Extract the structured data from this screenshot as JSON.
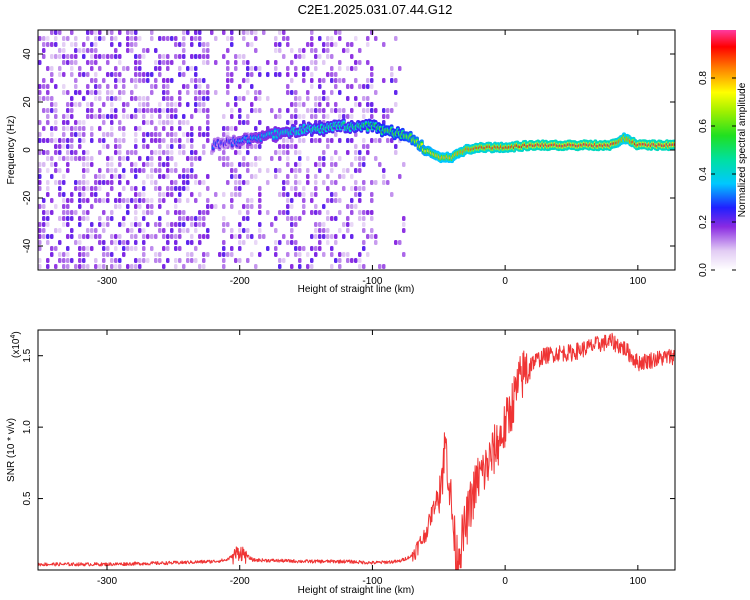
{
  "title": "C2E1.2025.031.07.44.G12",
  "chart_data": [
    {
      "type": "heatmap",
      "xlabel": "Height of straight line (km)",
      "ylabel": "Frequency (Hz)",
      "xlim": [
        -352,
        128
      ],
      "ylim": [
        -50,
        50
      ],
      "xticks": [
        -300,
        -200,
        -100,
        0,
        100
      ],
      "yticks": [
        -40,
        -20,
        0,
        20,
        40
      ],
      "colorbar": {
        "label": "Normalized spectral amplitude",
        "range": [
          0,
          1
        ],
        "ticks": [
          "0.0",
          "0.2",
          "0.4",
          "0.6",
          "0.8"
        ],
        "tick_values": [
          0,
          0.2,
          0.4,
          0.6,
          0.8
        ]
      },
      "ridge": {
        "x": [
          -220,
          -210,
          -200,
          -180,
          -160,
          -140,
          -120,
          -100,
          -90,
          -80,
          -70,
          -60,
          -50,
          -40,
          -30,
          -20,
          -10,
          0,
          20,
          40,
          60,
          80,
          90,
          100,
          128
        ],
        "frequency": [
          2,
          3,
          4,
          6,
          8,
          9,
          10,
          10,
          8,
          7,
          5,
          0,
          -3,
          -3,
          0,
          1,
          1,
          1,
          2,
          2,
          2,
          2,
          5,
          2,
          2
        ],
        "amplitude": [
          0.3,
          0.25,
          0.35,
          0.4,
          0.45,
          0.5,
          0.5,
          0.55,
          0.6,
          0.6,
          0.65,
          0.75,
          0.8,
          0.8,
          0.85,
          0.9,
          0.9,
          0.9,
          0.95,
          0.95,
          0.95,
          0.95,
          0.8,
          0.95,
          0.95
        ]
      }
    },
    {
      "type": "line",
      "xlabel": "Height of straight line (km)",
      "ylabel": "SNR (10 * v/v)",
      "yscale_label": "(x10",
      "yscale_exp": "4",
      "yscale_close": ")",
      "xlim": [
        -352,
        128
      ],
      "ylim": [
        0,
        1.68
      ],
      "xticks": [
        -300,
        -200,
        -100,
        0,
        100
      ],
      "yticks": [
        0.5,
        1.0,
        1.5
      ],
      "ytick_labels": [
        "0.5",
        "1.0",
        "1.5"
      ],
      "color": "#ef3434",
      "series": [
        {
          "x": [
            -352,
            -300,
            -250,
            -220,
            -210,
            -200,
            -190,
            -150,
            -120,
            -100,
            -80,
            -70,
            -60,
            -55,
            -50,
            -47,
            -45,
            -43,
            -40,
            -37,
            -35,
            -30,
            -25,
            -20,
            -15,
            -10,
            -5,
            0,
            5,
            10,
            15,
            20,
            30,
            40,
            50,
            60,
            70,
            80,
            90,
            100,
            110,
            128
          ],
          "values": [
            0.04,
            0.04,
            0.05,
            0.06,
            0.07,
            0.13,
            0.07,
            0.06,
            0.06,
            0.05,
            0.06,
            0.1,
            0.25,
            0.4,
            0.55,
            0.7,
            0.9,
            0.7,
            0.4,
            0.1,
            0.12,
            0.3,
            0.5,
            0.65,
            0.7,
            0.8,
            0.9,
            1.0,
            1.15,
            1.3,
            1.4,
            1.45,
            1.5,
            1.52,
            1.52,
            1.55,
            1.58,
            1.6,
            1.55,
            1.45,
            1.47,
            1.5
          ]
        }
      ]
    }
  ]
}
